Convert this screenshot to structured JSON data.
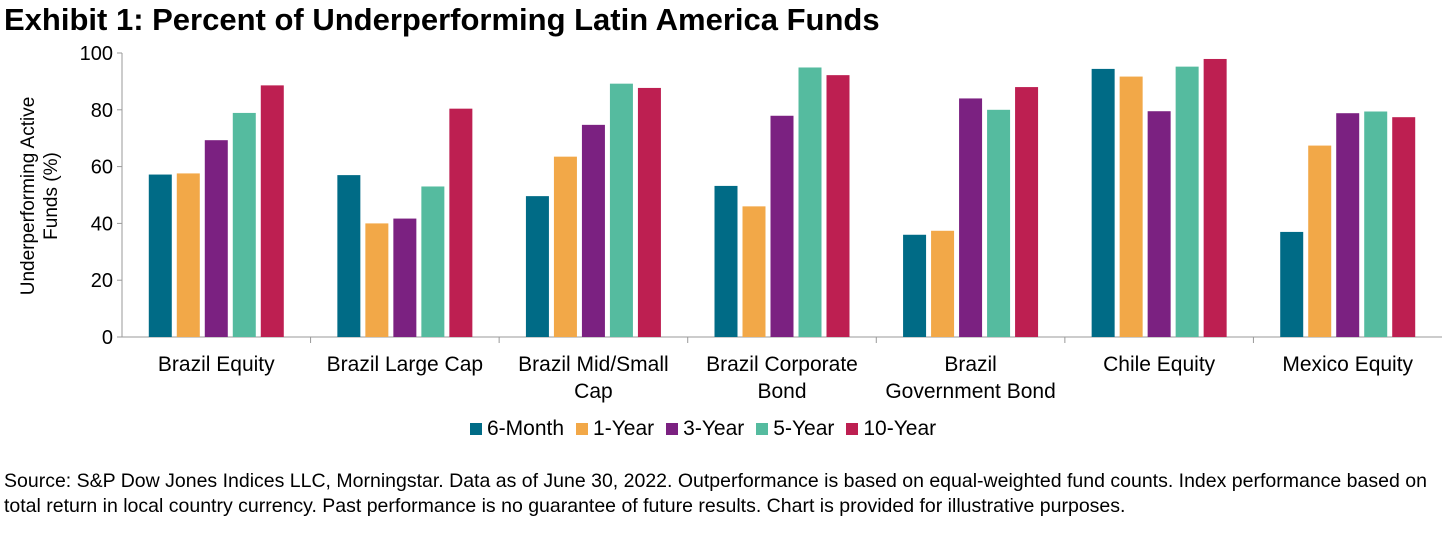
{
  "chart_data": {
    "type": "bar",
    "title": "Exhibit 1: Percent of Underperforming Latin America Funds",
    "ylabel": [
      "Underperforming Active",
      "Funds (%)"
    ],
    "xlabel": "",
    "ylim": [
      0,
      100
    ],
    "yticks": [
      0,
      20,
      40,
      60,
      80,
      100
    ],
    "categories": [
      [
        "Brazil Equity"
      ],
      [
        "Brazil Large Cap"
      ],
      [
        "Brazil Mid/Small",
        "Cap"
      ],
      [
        "Brazil Corporate",
        "Bond"
      ],
      [
        "Brazil",
        "Government Bond"
      ],
      [
        "Chile Equity"
      ],
      [
        "Mexico Equity"
      ]
    ],
    "series": [
      {
        "name": "6-Month",
        "color": "#006B86",
        "values": [
          57.2,
          57.0,
          49.6,
          53.2,
          36.0,
          94.4,
          37.0
        ]
      },
      {
        "name": "1-Year",
        "color": "#F2A848",
        "values": [
          57.6,
          40.0,
          63.5,
          46.0,
          37.4,
          91.7,
          67.4
        ]
      },
      {
        "name": "3-Year",
        "color": "#7B2181",
        "values": [
          69.3,
          41.7,
          74.7,
          77.9,
          84.0,
          79.5,
          78.8
        ]
      },
      {
        "name": "5-Year",
        "color": "#55BB9F",
        "values": [
          78.9,
          53.0,
          89.2,
          94.9,
          80.0,
          95.2,
          79.4
        ]
      },
      {
        "name": "10-Year",
        "color": "#BD1F51",
        "values": [
          88.6,
          80.4,
          87.7,
          92.2,
          88.0,
          97.9,
          77.4
        ]
      }
    ],
    "grid": false,
    "legend_position": "bottom"
  },
  "source_text": "Source: S&P Dow Jones Indices LLC, Morningstar.  Data as of June 30, 2022.  Outperformance is based on equal-weighted fund counts. Index performance based on total return in local country currency.  Past performance is no guarantee of future results.  Chart is provided for illustrative purposes."
}
